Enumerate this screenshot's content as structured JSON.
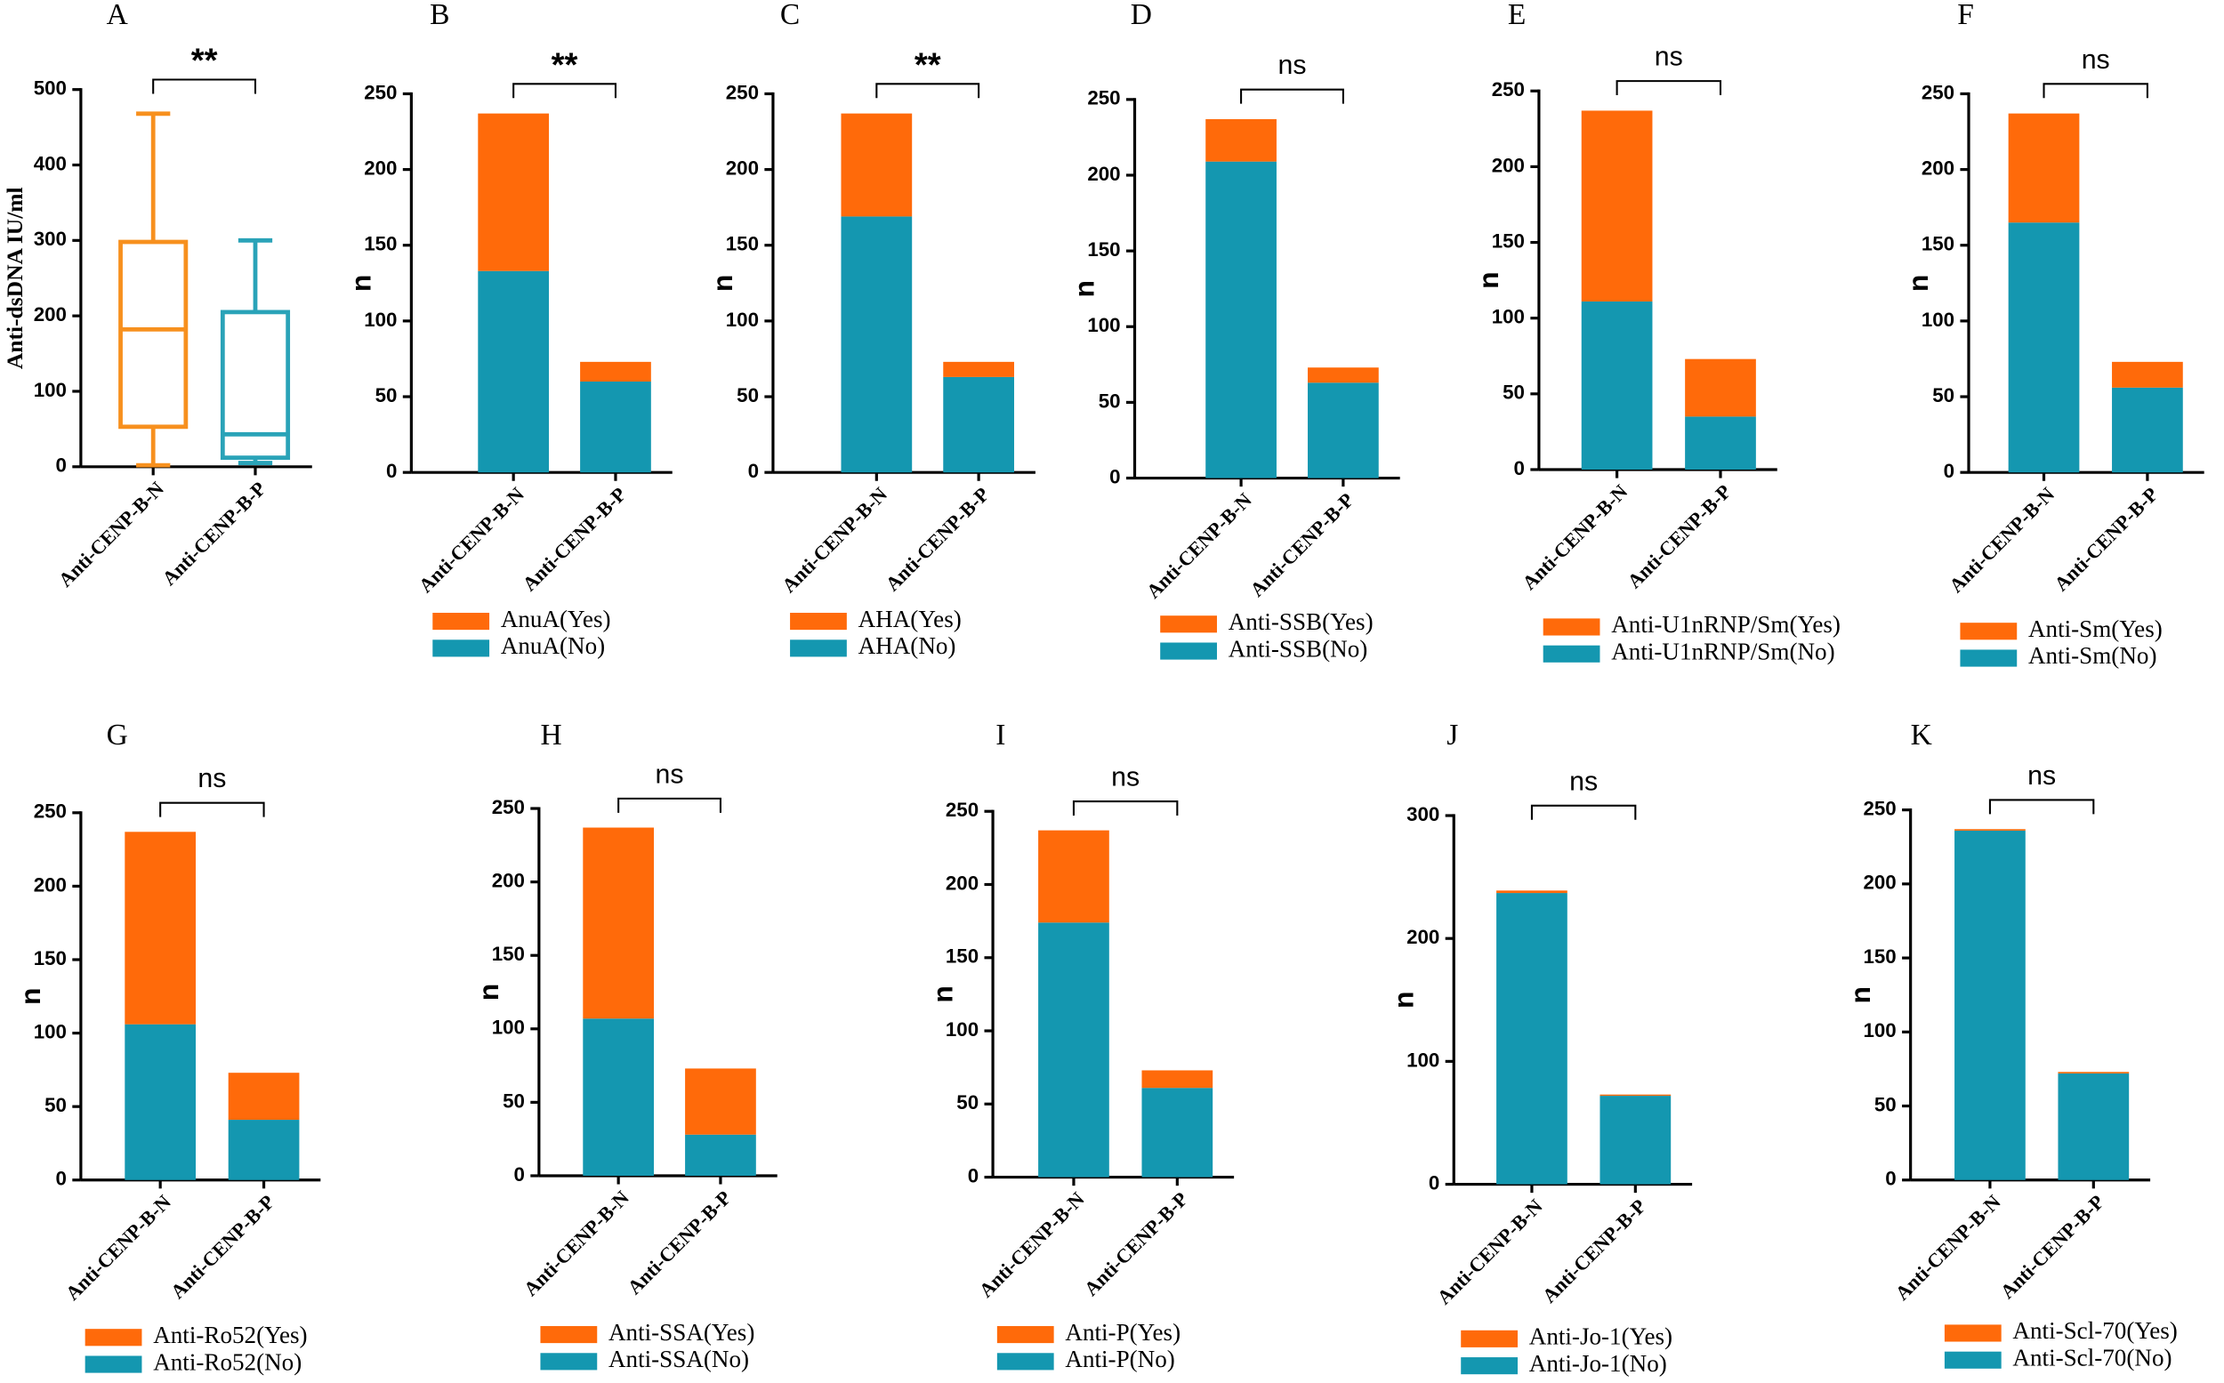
{
  "chart_data": [
    {
      "type": "box",
      "panel": "A",
      "annotation": "**",
      "categories": [
        "Anti-CENP-B-N",
        "Anti-CENP-B-P"
      ],
      "ylabel": "Anti-dsDNA IU/ml",
      "colors": [
        "#f7901e",
        "#2aa3b8"
      ],
      "min": [
        2,
        5
      ],
      "q1": [
        53,
        12
      ],
      "median": [
        182,
        43
      ],
      "q3": [
        298,
        205
      ],
      "max": [
        468,
        300
      ],
      "ylim": [
        0,
        500
      ],
      "yticks": [
        0,
        100,
        200,
        300,
        400,
        500
      ]
    },
    {
      "type": "bar",
      "stacked": true,
      "panel": "B",
      "annotation": "**",
      "categories": [
        "Anti-CENP-B-N",
        "Anti-CENP-B-P"
      ],
      "ylabel": "n",
      "series": [
        {
          "name": "AnuA(No)",
          "color": "#1497b0",
          "values": [
            133,
            60
          ]
        },
        {
          "name": "AnuA(Yes)",
          "color": "#ff6a0a",
          "values": [
            104,
            13
          ]
        }
      ],
      "ylim": [
        0,
        250
      ],
      "yticks": [
        0,
        50,
        100,
        150,
        200,
        250
      ]
    },
    {
      "type": "bar",
      "stacked": true,
      "panel": "C",
      "annotation": "**",
      "categories": [
        "Anti-CENP-B-N",
        "Anti-CENP-B-P"
      ],
      "ylabel": "n",
      "series": [
        {
          "name": "AHA(No)",
          "color": "#1497b0",
          "values": [
            169,
            63
          ]
        },
        {
          "name": "AHA(Yes)",
          "color": "#ff6a0a",
          "values": [
            68,
            10
          ]
        }
      ],
      "ylim": [
        0,
        250
      ],
      "yticks": [
        0,
        50,
        100,
        150,
        200,
        250
      ]
    },
    {
      "type": "bar",
      "stacked": true,
      "panel": "D",
      "annotation": "ns",
      "categories": [
        "Anti-CENP-B-N",
        "Anti-CENP-B-P"
      ],
      "ylabel": "n",
      "series": [
        {
          "name": "Anti-SSB(No)",
          "color": "#1497b0",
          "values": [
            209,
            63
          ]
        },
        {
          "name": "Anti-SSB(Yes)",
          "color": "#ff6a0a",
          "values": [
            28,
            10
          ]
        }
      ],
      "ylim": [
        0,
        250
      ],
      "yticks": [
        0,
        50,
        100,
        150,
        200,
        250
      ]
    },
    {
      "type": "bar",
      "stacked": true,
      "panel": "E",
      "annotation": "ns",
      "categories": [
        "Anti-CENP-B-N",
        "Anti-CENP-B-P"
      ],
      "ylabel": "n",
      "series": [
        {
          "name": "Anti-U1nRNP/Sm(No)",
          "color": "#1497b0",
          "values": [
            111,
            35
          ]
        },
        {
          "name": "Anti-U1nRNP/Sm(Yes)",
          "color": "#ff6a0a",
          "values": [
            126,
            38
          ]
        }
      ],
      "ylim": [
        0,
        250
      ],
      "yticks": [
        0,
        50,
        100,
        150,
        200,
        250
      ]
    },
    {
      "type": "bar",
      "stacked": true,
      "panel": "F",
      "annotation": "ns",
      "categories": [
        "Anti-CENP-B-N",
        "Anti-CENP-B-P"
      ],
      "ylabel": "n",
      "series": [
        {
          "name": "Anti-Sm(No)",
          "color": "#1497b0",
          "values": [
            165,
            56
          ]
        },
        {
          "name": "Anti-Sm(Yes)",
          "color": "#ff6a0a",
          "values": [
            72,
            17
          ]
        }
      ],
      "ylim": [
        0,
        250
      ],
      "yticks": [
        0,
        50,
        100,
        150,
        200,
        250
      ]
    },
    {
      "type": "bar",
      "stacked": true,
      "panel": "G",
      "annotation": "ns",
      "categories": [
        "Anti-CENP-B-N",
        "Anti-CENP-B-P"
      ],
      "ylabel": "n",
      "series": [
        {
          "name": "Anti-Ro52(No)",
          "color": "#1497b0",
          "values": [
            106,
            41
          ]
        },
        {
          "name": "Anti-Ro52(Yes)",
          "color": "#ff6a0a",
          "values": [
            131,
            32
          ]
        }
      ],
      "ylim": [
        0,
        250
      ],
      "yticks": [
        0,
        50,
        100,
        150,
        200,
        250
      ]
    },
    {
      "type": "bar",
      "stacked": true,
      "panel": "H",
      "annotation": "ns",
      "categories": [
        "Anti-CENP-B-N",
        "Anti-CENP-B-P"
      ],
      "ylabel": "n",
      "series": [
        {
          "name": "Anti-SSA(No)",
          "color": "#1497b0",
          "values": [
            107,
            28
          ]
        },
        {
          "name": "Anti-SSA(Yes)",
          "color": "#ff6a0a",
          "values": [
            130,
            45
          ]
        }
      ],
      "ylim": [
        0,
        250
      ],
      "yticks": [
        0,
        50,
        100,
        150,
        200,
        250
      ]
    },
    {
      "type": "bar",
      "stacked": true,
      "panel": "I",
      "annotation": "ns",
      "categories": [
        "Anti-CENP-B-N",
        "Anti-CENP-B-P"
      ],
      "ylabel": "n",
      "series": [
        {
          "name": "Anti-P(No)",
          "color": "#1497b0",
          "values": [
            174,
            61
          ]
        },
        {
          "name": "Anti-P(Yes)",
          "color": "#ff6a0a",
          "values": [
            63,
            12
          ]
        }
      ],
      "ylim": [
        0,
        250
      ],
      "yticks": [
        0,
        50,
        100,
        150,
        200,
        250
      ]
    },
    {
      "type": "bar",
      "stacked": true,
      "panel": "J",
      "annotation": "ns",
      "categories": [
        "Anti-CENP-B-N",
        "Anti-CENP-B-P"
      ],
      "ylabel": "n",
      "series": [
        {
          "name": "Anti-Jo-1(No)",
          "color": "#1497b0",
          "values": [
            237,
            72
          ]
        },
        {
          "name": "Anti-Jo-1(Yes)",
          "color": "#ff6a0a",
          "values": [
            2,
            1
          ]
        }
      ],
      "ylim": [
        0,
        300
      ],
      "yticks": [
        0,
        100,
        200,
        300
      ]
    },
    {
      "type": "bar",
      "stacked": true,
      "panel": "K",
      "annotation": "ns",
      "categories": [
        "Anti-CENP-B-N",
        "Anti-CENP-B-P"
      ],
      "ylabel": "n",
      "series": [
        {
          "name": "Anti-Scl-70(No)",
          "color": "#1497b0",
          "values": [
            236,
            72
          ]
        },
        {
          "name": "Anti-Scl-70(Yes)",
          "color": "#ff6a0a",
          "values": [
            1,
            1
          ]
        }
      ],
      "ylim": [
        0,
        250
      ],
      "yticks": [
        0,
        50,
        100,
        150,
        200,
        250
      ]
    }
  ]
}
